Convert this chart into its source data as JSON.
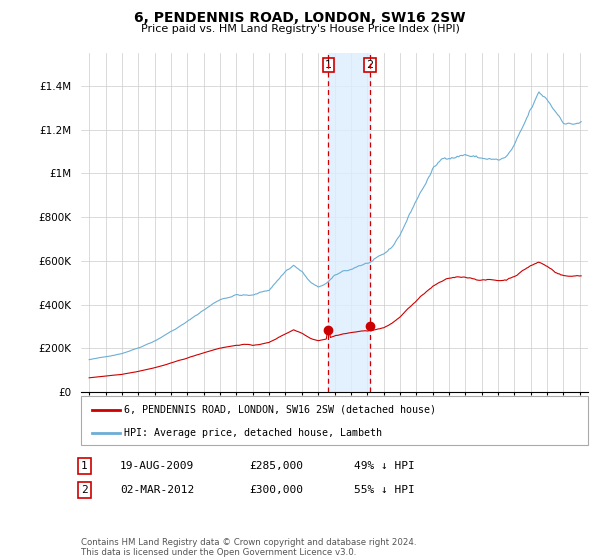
{
  "title": "6, PENDENNIS ROAD, LONDON, SW16 2SW",
  "subtitle": "Price paid vs. HM Land Registry's House Price Index (HPI)",
  "ylim": [
    0,
    1550000
  ],
  "yticks": [
    0,
    200000,
    400000,
    600000,
    800000,
    1000000,
    1200000,
    1400000
  ],
  "ytick_labels": [
    "£0",
    "£200K",
    "£400K",
    "£600K",
    "£800K",
    "£1M",
    "£1.2M",
    "£1.4M"
  ],
  "sale1_date_num": 2009.63,
  "sale1_price": 285000,
  "sale1_label": "1",
  "sale1_text": "19-AUG-2009",
  "sale1_amount": "£285,000",
  "sale1_pct": "49% ↓ HPI",
  "sale2_date_num": 2012.17,
  "sale2_price": 300000,
  "sale2_label": "2",
  "sale2_text": "02-MAR-2012",
  "sale2_amount": "£300,000",
  "sale2_pct": "55% ↓ HPI",
  "hpi_color": "#6baed6",
  "price_color": "#cc0000",
  "shade_color": "#ddeeff",
  "legend_label1": "6, PENDENNIS ROAD, LONDON, SW16 2SW (detached house)",
  "legend_label2": "HPI: Average price, detached house, Lambeth",
  "footer": "Contains HM Land Registry data © Crown copyright and database right 2024.\nThis data is licensed under the Open Government Licence v3.0."
}
